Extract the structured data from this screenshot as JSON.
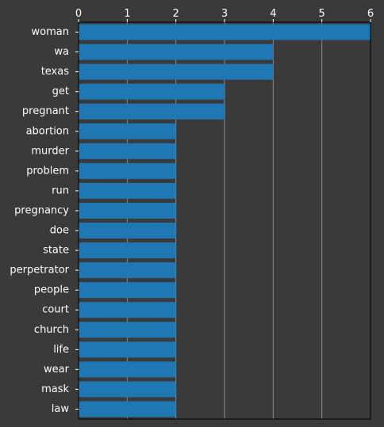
{
  "chart_data": {
    "type": "bar",
    "orientation": "horizontal",
    "categories": [
      "woman",
      "wa",
      "texas",
      "get",
      "pregnant",
      "abortion",
      "murder",
      "problem",
      "run",
      "pregnancy",
      "doe",
      "state",
      "perpetrator",
      "people",
      "court",
      "church",
      "life",
      "wear",
      "mask",
      "law"
    ],
    "values": [
      6,
      4,
      4,
      3,
      3,
      2,
      2,
      2,
      2,
      2,
      2,
      2,
      2,
      2,
      2,
      2,
      2,
      2,
      2,
      2
    ],
    "xlim": [
      0,
      6
    ],
    "x_ticks": [
      "0",
      "1",
      "2",
      "3",
      "4",
      "5",
      "6"
    ],
    "x_axis_position": "top",
    "grid": true,
    "colors": {
      "background": "#3a3a3a",
      "bar": "#1f77b4",
      "grid": "#8a8a8a",
      "axis": "#000000",
      "text": "#ffffff"
    }
  }
}
